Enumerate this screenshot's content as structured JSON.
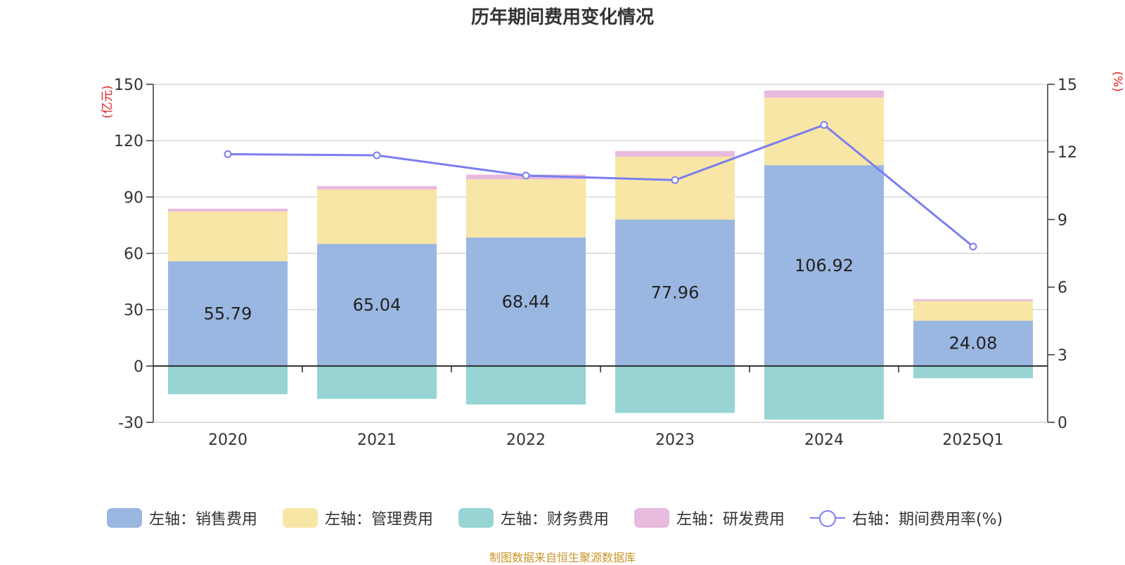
{
  "chart_data": {
    "type": "bar",
    "stacked": true,
    "title": "历年期间费用变化情况",
    "categories": [
      "2020",
      "2021",
      "2022",
      "2023",
      "2024",
      "2025Q1"
    ],
    "left_axis": {
      "label": "(亿元)",
      "ylim": [
        -30,
        150
      ],
      "ticks": [
        -30,
        0,
        30,
        60,
        90,
        120,
        150
      ]
    },
    "right_axis": {
      "label": "(%)",
      "ylim": [
        0,
        15
      ],
      "ticks": [
        0,
        3,
        6,
        9,
        12,
        15
      ]
    },
    "series": [
      {
        "name": "左轴：销售费用",
        "axis": "left",
        "color": "#9ab7e1",
        "values": [
          55.79,
          65.04,
          68.44,
          77.96,
          106.92,
          24.08
        ],
        "show_labels": true
      },
      {
        "name": "左轴：管理费用",
        "axis": "left",
        "color": "#f8e6a6",
        "values": [
          26.5,
          29.0,
          31.0,
          33.5,
          36.0,
          10.5
        ]
      },
      {
        "name": "左轴：财务费用",
        "axis": "left",
        "color": "#97d4d3",
        "values": [
          -15.0,
          -17.5,
          -20.5,
          -25.0,
          -28.5,
          -6.5
        ]
      },
      {
        "name": "左轴：研发费用",
        "axis": "left",
        "color": "#e8bade",
        "values": [
          1.5,
          1.8,
          2.5,
          3.0,
          3.8,
          1.0
        ]
      },
      {
        "name": "右轴：期间费用率(%)",
        "axis": "right",
        "type": "line",
        "color": "#7b7ef0",
        "values": [
          11.9,
          11.85,
          10.95,
          10.75,
          13.2,
          7.8
        ]
      }
    ],
    "legend_position": "bottom",
    "grid": true
  },
  "source_note": "制图数据来自恒生聚源数据库"
}
